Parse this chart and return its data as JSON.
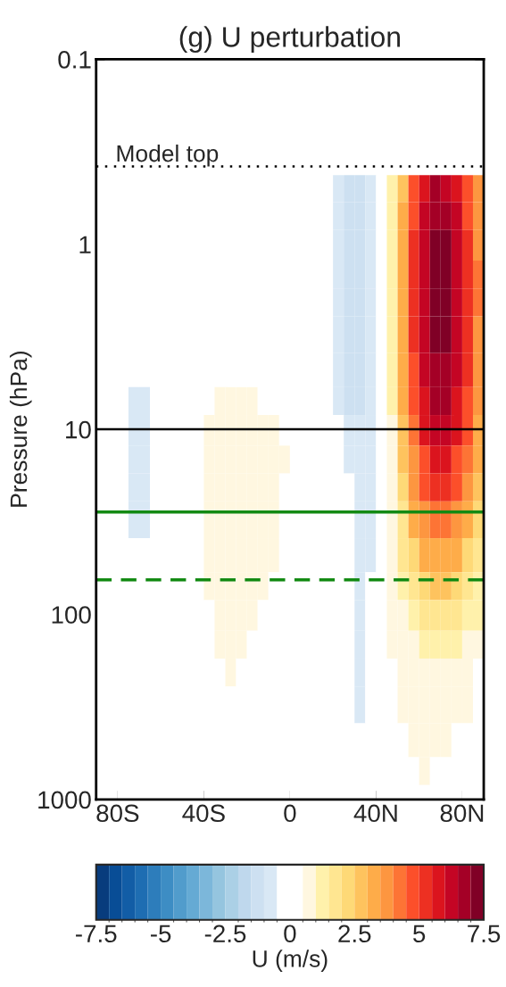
{
  "chart_data": {
    "type": "heatmap",
    "title": "(g) U perturbation",
    "ylabel": "Pressure (hPa)",
    "clabel": "U (m/s)",
    "x": [
      -87.5,
      -82.5,
      -77.5,
      -72.5,
      -67.5,
      -62.5,
      -57.5,
      -52.5,
      -47.5,
      -42.5,
      -37.5,
      -32.5,
      -27.5,
      -22.5,
      -17.5,
      -12.5,
      -7.5,
      -2.5,
      2.5,
      7.5,
      12.5,
      17.5,
      22.5,
      27.5,
      32.5,
      37.5,
      42.5,
      47.5,
      52.5,
      57.5,
      62.5,
      67.5,
      72.5,
      77.5,
      82.5,
      87.5
    ],
    "y": [
      0.5,
      0.7,
      1,
      1.5,
      2,
      3,
      5,
      7,
      10,
      15,
      20,
      30,
      50,
      70,
      100,
      150,
      200,
      300,
      500,
      700,
      1000
    ],
    "cells": [
      [
        0,
        0,
        0,
        0,
        0,
        0,
        0,
        0,
        0,
        0,
        0,
        0,
        0,
        0,
        0,
        0,
        0,
        0,
        0,
        0,
        0,
        0,
        -0.7,
        -1.2,
        -1.2,
        -0.7,
        0,
        1.0,
        2.9,
        4.6,
        5.7,
        6.5,
        6.4,
        5.7,
        4.7,
        3.6
      ],
      [
        0,
        0,
        0,
        0,
        0,
        0,
        0,
        0,
        0,
        0,
        0,
        0,
        0,
        0,
        0,
        0,
        0,
        0,
        0,
        0,
        0,
        0,
        -0.7,
        -1.2,
        -1.2,
        -0.7,
        0,
        1.0,
        3.1,
        4.8,
        6.0,
        6.8,
        6.7,
        6.0,
        4.9,
        3.7
      ],
      [
        0,
        0,
        0,
        0,
        0,
        0,
        0,
        0,
        0,
        0,
        0,
        0,
        0,
        0,
        0,
        0,
        0,
        0,
        0,
        0,
        0,
        0,
        -0.7,
        -1.2,
        -1.2,
        -0.7,
        0,
        1.1,
        3.2,
        5.0,
        6.2,
        7.1,
        7.0,
        6.2,
        5.1,
        3.9
      ],
      [
        0,
        0,
        0,
        0,
        0,
        0,
        0,
        0,
        0,
        0,
        0,
        0,
        0,
        0,
        0,
        0,
        0,
        0,
        0,
        0,
        0,
        0,
        -0.7,
        -1.2,
        -1.2,
        -0.7,
        0,
        1.1,
        3.3,
        5.1,
        6.4,
        7.3,
        7.2,
        6.4,
        5.3,
        4.0
      ],
      [
        0,
        0,
        0,
        0,
        0,
        0,
        0,
        0,
        0,
        0,
        0,
        0,
        0,
        0,
        0,
        0,
        0,
        0,
        0,
        0,
        0,
        0,
        -0.7,
        -1.2,
        -1.2,
        -0.7,
        0,
        1.1,
        3.3,
        5.1,
        6.4,
        7.3,
        7.2,
        6.4,
        5.3,
        4.0
      ],
      [
        0,
        0,
        0,
        0,
        0,
        0,
        0,
        0,
        0,
        0,
        0,
        0,
        0,
        0,
        0,
        0,
        0,
        0,
        0,
        0,
        0,
        0,
        -0.7,
        -1.2,
        -1.2,
        -0.7,
        0,
        1.1,
        3.2,
        5.0,
        6.2,
        7.1,
        7.0,
        6.2,
        5.1,
        3.9
      ],
      [
        0,
        0,
        0,
        0,
        0,
        0,
        0,
        0,
        0,
        0,
        0,
        0,
        0,
        0,
        0,
        0,
        0,
        0,
        0,
        0,
        0,
        0,
        -0.7,
        -1.2,
        -1.2,
        -0.7,
        0,
        1.0,
        3.1,
        4.8,
        6.1,
        6.9,
        6.8,
        6.1,
        5.0,
        3.8
      ],
      [
        0,
        0,
        0,
        -0.6,
        -0.6,
        0,
        0,
        0,
        0,
        0,
        0,
        0.7,
        0.7,
        0.7,
        0.7,
        0,
        0,
        0,
        0,
        0,
        0,
        0,
        -0.7,
        -1.2,
        -1.2,
        -0.7,
        0,
        1.0,
        3.0,
        4.6,
        5.8,
        6.6,
        6.5,
        5.8,
        4.8,
        3.6
      ],
      [
        0,
        0,
        0,
        -0.6,
        -0.6,
        0,
        0,
        0,
        0,
        0,
        0.7,
        0.7,
        0.7,
        0.7,
        0.7,
        0.7,
        0.7,
        0,
        0,
        0,
        0,
        0,
        0,
        -0.7,
        -0.7,
        -0.7,
        0,
        0.9,
        2.8,
        4.3,
        5.5,
        6.2,
        6.1,
        5.5,
        4.5,
        3.4
      ],
      [
        0,
        0,
        0,
        -0.6,
        -0.6,
        0,
        0,
        0,
        0,
        0,
        0.7,
        0.7,
        0.7,
        0.7,
        0.7,
        0.7,
        0.7,
        0.7,
        0,
        0,
        0,
        0,
        0,
        -0.7,
        -0.7,
        -0.7,
        0,
        0.8,
        2.5,
        3.9,
        4.9,
        5.6,
        5.5,
        4.9,
        4.0,
        3.1
      ],
      [
        0,
        0,
        0,
        -0.6,
        -0.6,
        0,
        0,
        0,
        0,
        0,
        0.7,
        0.7,
        0.7,
        0.7,
        0.7,
        0.7,
        0.7,
        0,
        0,
        0,
        0,
        0,
        0,
        0,
        -0.6,
        -0.6,
        0,
        0.8,
        2.3,
        3.6,
        4.5,
        5.1,
        5.0,
        4.5,
        3.7,
        2.8
      ],
      [
        0,
        0,
        0,
        -0.6,
        -0.6,
        0,
        0,
        0,
        0,
        0,
        0.7,
        0.7,
        0.7,
        0.7,
        0.7,
        0.7,
        0.7,
        0,
        0,
        0,
        0,
        0,
        0,
        0,
        -0.6,
        -0.6,
        0,
        0.6,
        1.9,
        3.0,
        3.8,
        4.3,
        4.2,
        3.8,
        3.1,
        2.4
      ],
      [
        0,
        0,
        0,
        0,
        0,
        0,
        0,
        0,
        0,
        0,
        0.7,
        0.7,
        0.7,
        0.7,
        0.7,
        0.7,
        0.7,
        0,
        0,
        0,
        0,
        0,
        0,
        0,
        -0.6,
        -0.6,
        0,
        0.5,
        1.5,
        2.4,
        3.0,
        3.4,
        3.3,
        3.0,
        2.4,
        1.9
      ],
      [
        0,
        0,
        0,
        0,
        0,
        0,
        0,
        0,
        0,
        0,
        0.7,
        0.7,
        0.7,
        0.7,
        0.7,
        0.7,
        0,
        0,
        0,
        0,
        0,
        0,
        0,
        0,
        -0.6,
        0,
        0,
        0.5,
        1.2,
        1.8,
        2.3,
        2.6,
        2.5,
        2.3,
        1.9,
        1.4
      ],
      [
        0,
        0,
        0,
        0,
        0,
        0,
        0,
        0,
        0,
        0,
        0,
        0.7,
        0.7,
        0.7,
        0.7,
        0,
        0,
        0,
        0,
        0,
        0,
        0,
        0,
        0,
        -0.6,
        0,
        0,
        0.5,
        0.8,
        1.3,
        1.6,
        1.8,
        1.8,
        1.6,
        1.3,
        1.0
      ],
      [
        0,
        0,
        0,
        0,
        0,
        0,
        0,
        0,
        0,
        0,
        0,
        0.7,
        0.7,
        0.7,
        0,
        0,
        0,
        0,
        0,
        0,
        0,
        0,
        0,
        0,
        -0.6,
        0,
        0,
        0.5,
        0.6,
        0.8,
        1.0,
        1.1,
        1.1,
        1.0,
        0.8,
        0.6
      ],
      [
        0,
        0,
        0,
        0,
        0,
        0,
        0,
        0,
        0,
        0,
        0,
        0,
        0.7,
        0,
        0,
        0,
        0,
        0,
        0,
        0,
        0,
        0,
        0,
        0,
        -0.6,
        0,
        0,
        0,
        0.5,
        0.6,
        0.7,
        0.8,
        0.8,
        0.7,
        0.6,
        0
      ],
      [
        0,
        0,
        0,
        0,
        0,
        0,
        0,
        0,
        0,
        0,
        0,
        0,
        0,
        0,
        0,
        0,
        0,
        0,
        0,
        0,
        0,
        0,
        0,
        0,
        -0.6,
        0,
        0,
        0,
        0.5,
        0.6,
        0.7,
        0.7,
        0.7,
        0.6,
        0.5,
        0
      ],
      [
        0,
        0,
        0,
        0,
        0,
        0,
        0,
        0,
        0,
        0,
        0,
        0,
        0,
        0,
        0,
        0,
        0,
        0,
        0,
        0,
        0,
        0,
        0,
        0,
        0,
        0,
        0,
        0,
        0,
        0.5,
        0.6,
        0.6,
        0.5,
        0,
        0,
        0
      ],
      [
        0,
        0,
        0,
        0,
        0,
        0,
        0,
        0,
        0,
        0,
        0,
        0,
        0,
        0,
        0,
        0,
        0,
        0,
        0,
        0,
        0,
        0,
        0,
        0,
        0,
        0,
        0,
        0,
        0,
        0,
        0.5,
        0,
        0,
        0,
        0,
        0
      ],
      [
        0,
        0,
        0,
        0,
        0,
        0,
        0,
        0,
        0,
        0,
        0,
        0,
        0,
        0,
        0,
        0,
        0,
        0,
        0,
        0,
        0,
        0,
        0,
        0,
        0,
        0,
        0,
        0,
        0,
        0,
        0,
        0,
        0,
        0,
        0,
        0
      ]
    ],
    "xlim": [
      -90,
      90
    ],
    "xticks": [
      {
        "value": -80,
        "label": "80S"
      },
      {
        "value": -40,
        "label": "40S"
      },
      0,
      {
        "value": 40,
        "label": "40N"
      },
      {
        "value": 80,
        "label": "80N"
      }
    ],
    "log": "y",
    "ylim": [
      1000,
      0.1
    ],
    "yticks": [
      0.1,
      1,
      10,
      100,
      1000
    ],
    "clim": [
      -7.5,
      7.5
    ],
    "cticks": [
      -7.5,
      -5,
      -2.5,
      0,
      2.5,
      5,
      7.5
    ],
    "ref_lines": [
      {
        "axis": "y",
        "value": 0.38,
        "label": "Model top",
        "color": "#000000",
        "line_style": "dotted"
      },
      {
        "axis": "y",
        "value": 10,
        "color": "#000000",
        "line_style": "solid"
      },
      {
        "axis": "y",
        "value": 28,
        "color": "#138a13",
        "line_style": "solid"
      },
      {
        "axis": "y",
        "value": 65,
        "color": "#138a13",
        "line_style": "dashed"
      }
    ],
    "grid": false
  }
}
